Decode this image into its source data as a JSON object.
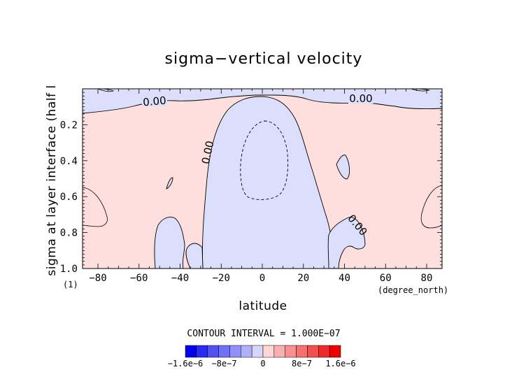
{
  "chart_data": {
    "type": "heatmap",
    "title": "sigma−vertical velocity",
    "xlabel": "latitude",
    "ylabel": "sigma at layer interface (half l",
    "x_unit": "(degree_north)",
    "y_unit": "(1)",
    "xlim": [
      -87.5,
      87.5
    ],
    "ylim": [
      1.0,
      0.0
    ],
    "x_ticks": [
      -80,
      -60,
      -40,
      -20,
      0,
      20,
      40,
      60,
      80
    ],
    "y_ticks": [
      0.2,
      0.4,
      0.6,
      0.8,
      1.0
    ],
    "x_tick_labels": [
      "−80",
      "−60",
      "−40",
      "−20",
      "0",
      "20",
      "40",
      "60",
      "80"
    ],
    "y_tick_labels": [
      "0.2",
      "0.4",
      "0.6",
      "0.8",
      "1.0"
    ],
    "contour_interval_text": "CONTOUR INTERVAL = 1.000E−07",
    "contour_labels": [
      "0.00",
      "0.00",
      "0.00",
      "0.00"
    ],
    "colorbar": {
      "colors": [
        "#0000ee",
        "#2a2af2",
        "#5050f5",
        "#7070f6",
        "#9090f8",
        "#b0b0fa",
        "#d6d6fc",
        "#ffd6d6",
        "#fab0b0",
        "#f79090",
        "#f57070",
        "#f25050",
        "#ef2a2a",
        "#ee0000"
      ],
      "tick_labels": [
        "−1.6e−6",
        "−8e−7",
        "0",
        "8e−7",
        "1.6e−6"
      ]
    },
    "fill_colors": {
      "positive": "#ffdede",
      "negative": "#dcdffb"
    },
    "features": {
      "central_negative_region": {
        "lat_range": [
          -28,
          32
        ],
        "sigma_range": [
          0.04,
          1.0
        ]
      },
      "inner_dashed_minimum": {
        "lat_range": [
          -11,
          12
        ],
        "sigma_range": [
          0.19,
          0.62
        ]
      },
      "upper_negative_band": {
        "lat_range": [
          -87.5,
          87.5
        ],
        "sigma_range": [
          0.0,
          0.1
        ]
      },
      "lower_left_negative_lobe": {
        "lat_range": [
          -52,
          -38
        ],
        "sigma_range": [
          0.72,
          1.0
        ]
      },
      "right_negative_protrusion": {
        "lat_range": [
          31,
          51
        ],
        "sigma_range": [
          0.7,
          1.0
        ]
      }
    }
  }
}
